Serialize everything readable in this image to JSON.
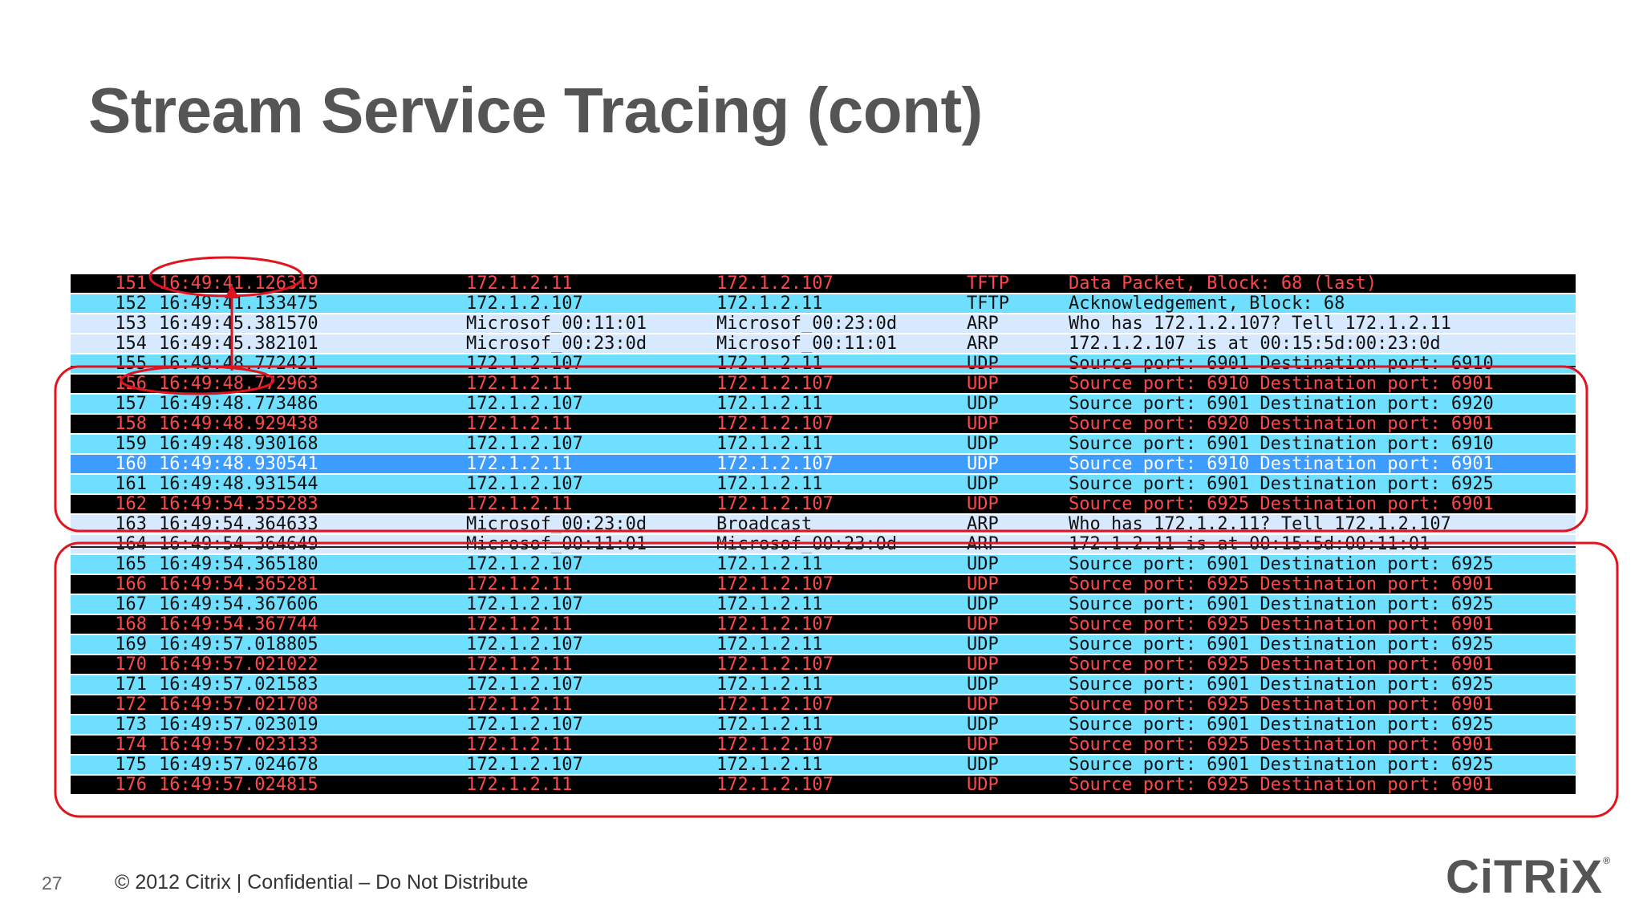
{
  "slide": {
    "title": "Stream Service Tracing (cont)",
    "page_number": "27",
    "footer": "© 2012 Citrix | Confidential – Do Not Distribute",
    "logo_text": "CiTRiX",
    "logo_mark": "®"
  },
  "colors": {
    "black_row_bg": "#000000",
    "black_row_text": "#ff4848",
    "cyan_row_bg": "#6fdfff",
    "light_row_bg": "#d6e9ff",
    "selected_row_bg": "#3c9cff",
    "annotation": "#e0141e"
  },
  "packets": [
    {
      "no": "151",
      "time": "16:49:41.126319",
      "src": "172.1.2.11",
      "dst": "172.1.2.107",
      "proto": "TFTP",
      "info": "Data Packet, Block: 68 (last)",
      "style": "black"
    },
    {
      "no": "152",
      "time": "16:49:41.133475",
      "src": "172.1.2.107",
      "dst": "172.1.2.11",
      "proto": "TFTP",
      "info": "Acknowledgement, Block: 68",
      "style": "cyan"
    },
    {
      "no": "153",
      "time": "16:49:45.381570",
      "src": "Microsof_00:11:01",
      "dst": "Microsof_00:23:0d",
      "proto": "ARP",
      "info": "Who has 172.1.2.107?  Tell 172.1.2.11",
      "style": "light"
    },
    {
      "no": "154",
      "time": "16:49:45.382101",
      "src": "Microsof_00:23:0d",
      "dst": "Microsof_00:11:01",
      "proto": "ARP",
      "info": "172.1.2.107 is at 00:15:5d:00:23:0d",
      "style": "light"
    },
    {
      "no": "155",
      "time": "16:49:48.772421",
      "src": "172.1.2.107",
      "dst": "172.1.2.11",
      "proto": "UDP",
      "info": "Source port: 6901  Destination port: 6910",
      "style": "cyan",
      "strike": true
    },
    {
      "no": "156",
      "time": "16:49:48.772963",
      "src": "172.1.2.11",
      "dst": "172.1.2.107",
      "proto": "UDP",
      "info": "Source port: 6910  Destination port: 6901",
      "style": "black"
    },
    {
      "no": "157",
      "time": "16:49:48.773486",
      "src": "172.1.2.107",
      "dst": "172.1.2.11",
      "proto": "UDP",
      "info": "Source port: 6901  Destination port: 6920",
      "style": "cyan"
    },
    {
      "no": "158",
      "time": "16:49:48.929438",
      "src": "172.1.2.11",
      "dst": "172.1.2.107",
      "proto": "UDP",
      "info": "Source port: 6920  Destination port: 6901",
      "style": "black"
    },
    {
      "no": "159",
      "time": "16:49:48.930168",
      "src": "172.1.2.107",
      "dst": "172.1.2.11",
      "proto": "UDP",
      "info": "Source port: 6901  Destination port: 6910",
      "style": "cyan"
    },
    {
      "no": "160",
      "time": "16:49:48.930541",
      "src": "172.1.2.11",
      "dst": "172.1.2.107",
      "proto": "UDP",
      "info": "Source port: 6910  Destination port: 6901",
      "style": "blue"
    },
    {
      "no": "161",
      "time": "16:49:48.931544",
      "src": "172.1.2.107",
      "dst": "172.1.2.11",
      "proto": "UDP",
      "info": "Source port: 6901  Destination port: 6925",
      "style": "cyan"
    },
    {
      "no": "162",
      "time": "16:49:54.355283",
      "src": "172.1.2.11",
      "dst": "172.1.2.107",
      "proto": "UDP",
      "info": "Source port: 6925  Destination port: 6901",
      "style": "black"
    },
    {
      "no": "163",
      "time": "16:49:54.364633",
      "src": "Microsof_00:23:0d",
      "dst": "Broadcast",
      "proto": "ARP",
      "info": "Who has 172.1.2.11?  Tell 172.1.2.107",
      "style": "light"
    },
    {
      "no": "164",
      "time": "16:49:54.364649",
      "src": "Microsof_00:11:01",
      "dst": "Microsof_00:23:0d",
      "proto": "ARP",
      "info": "172.1.2.11 is at 00:15:5d:00:11:01",
      "style": "light",
      "strike": true
    },
    {
      "no": "165",
      "time": "16:49:54.365180",
      "src": "172.1.2.107",
      "dst": "172.1.2.11",
      "proto": "UDP",
      "info": "Source port: 6901  Destination port: 6925",
      "style": "cyan"
    },
    {
      "no": "166",
      "time": "16:49:54.365281",
      "src": "172.1.2.11",
      "dst": "172.1.2.107",
      "proto": "UDP",
      "info": "Source port: 6925  Destination port: 6901",
      "style": "black"
    },
    {
      "no": "167",
      "time": "16:49:54.367606",
      "src": "172.1.2.107",
      "dst": "172.1.2.11",
      "proto": "UDP",
      "info": "Source port: 6901  Destination port: 6925",
      "style": "cyan"
    },
    {
      "no": "168",
      "time": "16:49:54.367744",
      "src": "172.1.2.11",
      "dst": "172.1.2.107",
      "proto": "UDP",
      "info": "Source port: 6925  Destination port: 6901",
      "style": "black"
    },
    {
      "no": "169",
      "time": "16:49:57.018805",
      "src": "172.1.2.107",
      "dst": "172.1.2.11",
      "proto": "UDP",
      "info": "Source port: 6901  Destination port: 6925",
      "style": "cyan"
    },
    {
      "no": "170",
      "time": "16:49:57.021022",
      "src": "172.1.2.11",
      "dst": "172.1.2.107",
      "proto": "UDP",
      "info": "Source port: 6925  Destination port: 6901",
      "style": "black"
    },
    {
      "no": "171",
      "time": "16:49:57.021583",
      "src": "172.1.2.107",
      "dst": "172.1.2.11",
      "proto": "UDP",
      "info": "Source port: 6901  Destination port: 6925",
      "style": "cyan"
    },
    {
      "no": "172",
      "time": "16:49:57.021708",
      "src": "172.1.2.11",
      "dst": "172.1.2.107",
      "proto": "UDP",
      "info": "Source port: 6925  Destination port: 6901",
      "style": "black"
    },
    {
      "no": "173",
      "time": "16:49:57.023019",
      "src": "172.1.2.107",
      "dst": "172.1.2.11",
      "proto": "UDP",
      "info": "Source port: 6901  Destination port: 6925",
      "style": "cyan"
    },
    {
      "no": "174",
      "time": "16:49:57.023133",
      "src": "172.1.2.11",
      "dst": "172.1.2.107",
      "proto": "UDP",
      "info": "Source port: 6925  Destination port: 6901",
      "style": "black"
    },
    {
      "no": "175",
      "time": "16:49:57.024678",
      "src": "172.1.2.107",
      "dst": "172.1.2.11",
      "proto": "UDP",
      "info": "Source port: 6901  Destination port: 6925",
      "style": "cyan"
    },
    {
      "no": "176",
      "time": "16:49:57.024815",
      "src": "172.1.2.11",
      "dst": "172.1.2.107",
      "proto": "UDP",
      "info": "Source port: 6925  Destination port: 6901",
      "style": "black"
    }
  ]
}
